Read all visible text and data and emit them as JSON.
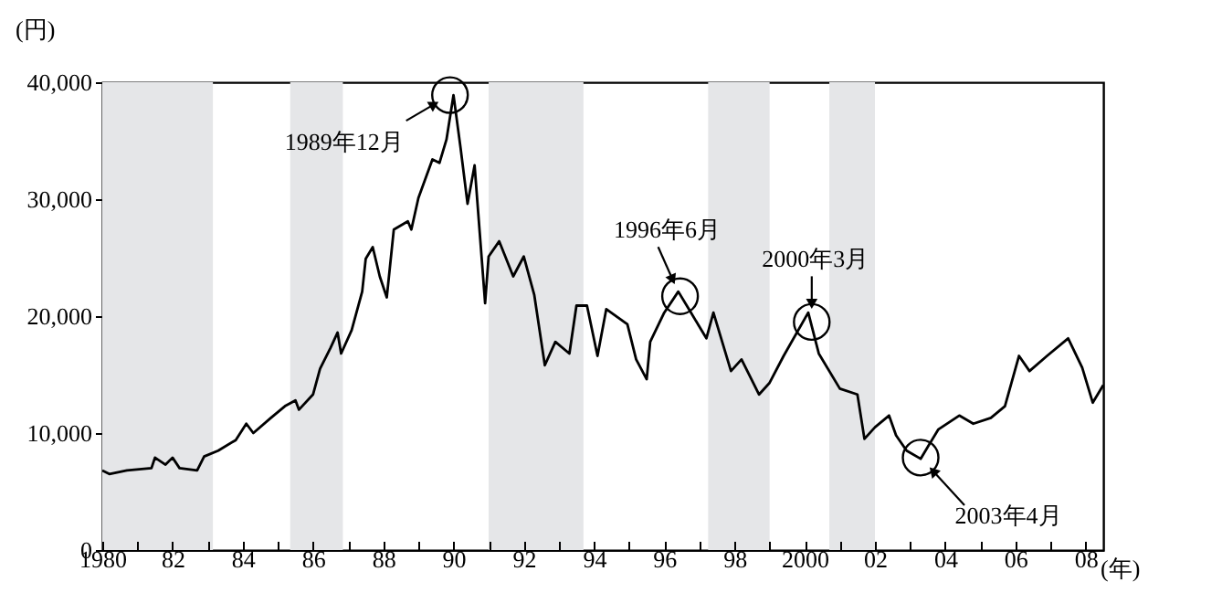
{
  "chart_data": {
    "type": "line",
    "ylabel": "(円)",
    "xlabel": "(年)",
    "x": [
      1980,
      1980.2,
      1980.7,
      1981.4,
      1981.5,
      1981.8,
      1982.0,
      1982.2,
      1982.7,
      1982.9,
      1983.3,
      1983.8,
      1984.1,
      1984.3,
      1984.8,
      1985.2,
      1985.5,
      1985.6,
      1986.0,
      1986.2,
      1986.5,
      1986.7,
      1986.8,
      1987.1,
      1987.4,
      1987.5,
      1987.7,
      1987.9,
      1988.1,
      1988.3,
      1988.7,
      1988.8,
      1989.0,
      1989.4,
      1989.6,
      1989.8,
      1990.0,
      1990.2,
      1990.4,
      1990.6,
      1990.9,
      1991.0,
      1991.3,
      1991.7,
      1992.0,
      1992.3,
      1992.6,
      1992.9,
      1993.3,
      1993.5,
      1993.8,
      1994.1,
      1994.35,
      1994.95,
      1995.2,
      1995.5,
      1995.6,
      1996.0,
      1996.4,
      1996.7,
      1997.2,
      1997.4,
      1997.9,
      1998.2,
      1998.7,
      1999.0,
      1999.4,
      2000.1,
      2000.4,
      2001.0,
      2001.5,
      2001.7,
      2002.0,
      2002.4,
      2002.6,
      2002.9,
      2003.3,
      2003.8,
      2004.4,
      2004.8,
      2005.3,
      2005.7,
      2006.1,
      2006.4,
      2006.9,
      2007.5,
      2007.9,
      2008.2,
      2008.5
    ],
    "series": [
      {
        "color": "#000000",
        "values": [
          6800,
          6500,
          6800,
          7000,
          7900,
          7300,
          7900,
          7000,
          6800,
          8000,
          8500,
          9400,
          10800,
          10000,
          11300,
          12300,
          12800,
          12000,
          13300,
          15500,
          17300,
          18600,
          16800,
          18800,
          22100,
          24900,
          25900,
          23400,
          21600,
          27400,
          28100,
          27400,
          30100,
          33400,
          33100,
          35100,
          38900,
          34400,
          29600,
          32900,
          21100,
          25100,
          26400,
          23400,
          25100,
          21800,
          15800,
          17800,
          16800,
          20900,
          20900,
          16600,
          20600,
          19300,
          16300,
          14600,
          17800,
          20300,
          22100,
          20600,
          18100,
          20300,
          15300,
          16300,
          13300,
          14300,
          16600,
          20300,
          16800,
          13800,
          13300,
          9500,
          10500,
          11500,
          9800,
          8500,
          7800,
          10300,
          11500,
          10800,
          11300,
          12300,
          16600,
          15300,
          16600,
          18100,
          15600,
          12600,
          14100
        ]
      }
    ],
    "xlim": [
      1980,
      2008.5
    ],
    "xticks": [
      {
        "value": 1980,
        "label": "1980"
      },
      {
        "value": 1981,
        "label": null
      },
      {
        "value": 1982,
        "label": "82"
      },
      {
        "value": 1983,
        "label": null
      },
      {
        "value": 1984,
        "label": "84"
      },
      {
        "value": 1985,
        "label": null
      },
      {
        "value": 1986,
        "label": "86"
      },
      {
        "value": 1987,
        "label": null
      },
      {
        "value": 1988,
        "label": "88"
      },
      {
        "value": 1989,
        "label": null
      },
      {
        "value": 1990,
        "label": "90"
      },
      {
        "value": 1991,
        "label": null
      },
      {
        "value": 1992,
        "label": "92"
      },
      {
        "value": 1993,
        "label": null
      },
      {
        "value": 1994,
        "label": "94"
      },
      {
        "value": 1995,
        "label": null
      },
      {
        "value": 1996,
        "label": "96"
      },
      {
        "value": 1997,
        "label": null
      },
      {
        "value": 1998,
        "label": "98"
      },
      {
        "value": 1999,
        "label": null
      },
      {
        "value": 2000,
        "label": "2000"
      },
      {
        "value": 2001,
        "label": null
      },
      {
        "value": 2002,
        "label": "02"
      },
      {
        "value": 2003,
        "label": null
      },
      {
        "value": 2004,
        "label": "04"
      },
      {
        "value": 2005,
        "label": null
      },
      {
        "value": 2006,
        "label": "06"
      },
      {
        "value": 2007,
        "label": null
      },
      {
        "value": 2008,
        "label": "08"
      }
    ],
    "ylim": [
      0,
      40000
    ],
    "yticks": [
      {
        "value": 0,
        "label": "0"
      },
      {
        "value": 10000,
        "label": "10,000"
      },
      {
        "value": 20000,
        "label": "20,000"
      },
      {
        "value": 30000,
        "label": "30,000"
      },
      {
        "value": 40000,
        "label": "40,000"
      }
    ],
    "bands": [
      {
        "axis": "x",
        "from": 1980,
        "to": 1983.15,
        "color": "#e5e6e8"
      },
      {
        "axis": "x",
        "from": 1985.35,
        "to": 1986.85,
        "color": "#e5e6e8"
      },
      {
        "axis": "x",
        "from": 1991.0,
        "to": 1993.7,
        "color": "#e5e6e8"
      },
      {
        "axis": "x",
        "from": 1997.25,
        "to": 1999.0,
        "color": "#e5e6e8"
      },
      {
        "axis": "x",
        "from": 2000.7,
        "to": 2002.0,
        "color": "#e5e6e8"
      }
    ],
    "annotations": [
      {
        "text": "1989年12月",
        "x": 1989.9,
        "y": 38900
      },
      {
        "text": "1996年6月",
        "x": 1996.45,
        "y": 21700
      },
      {
        "text": "2000年3月",
        "x": 2000.2,
        "y": 19500
      },
      {
        "text": "2003年4月",
        "x": 2003.3,
        "y": 7900
      }
    ],
    "grid": false,
    "marker": "none",
    "line_style": "solid"
  }
}
